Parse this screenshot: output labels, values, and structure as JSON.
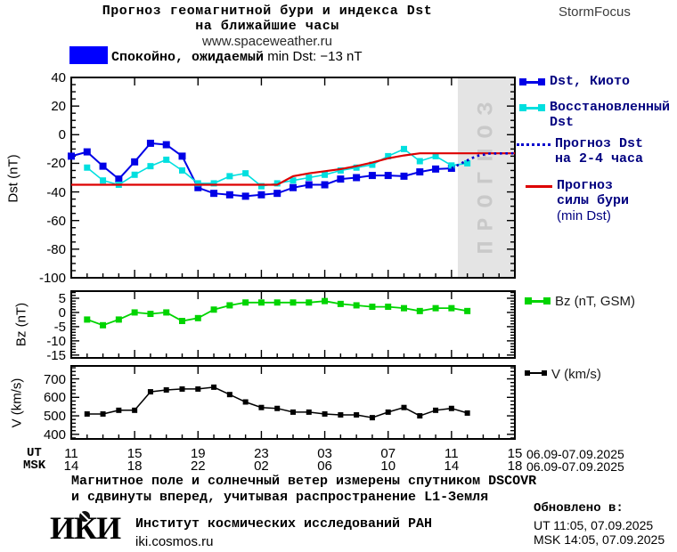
{
  "header": {
    "title_line1": "Прогноз геомагнитной бури и индекса Dst",
    "title_line2": "на ближайшие часы",
    "site": "www.spaceweather.ru",
    "brand": "StormFocus"
  },
  "banner": {
    "label_ru": "Спокойно, ожидаемый",
    "label_latin": "min Dst: −13 nT",
    "color": "#0000ff"
  },
  "legend": {
    "entries": [
      {
        "color": "#0000e6",
        "label_lines": [
          "Dst, Киото"
        ]
      },
      {
        "color": "#00dfdf",
        "label_lines": [
          "Восстановленный",
          "Dst"
        ]
      },
      {
        "color": "#0000cc",
        "label_lines": [
          "Прогноз Dst",
          "на 2-4 часа"
        ]
      },
      {
        "color": "#dd0000",
        "label_lines": [
          "Прогноз",
          "силы бури",
          "(min Dst)"
        ]
      }
    ],
    "bz_label": "Bz (nT, GSM)",
    "bz_color": "#00d400",
    "v_label": "V (km/s)",
    "v_color": "#000000"
  },
  "xaxis": {
    "ut_label": "UT",
    "ut_ticks": [
      "11",
      "15",
      "19",
      "23",
      "03",
      "07",
      "11",
      "15"
    ],
    "ut_date": "06.09-07.09.2025",
    "msk_label": "MSK",
    "msk_ticks": [
      "14",
      "18",
      "22",
      "02",
      "06",
      "10",
      "14",
      "18"
    ],
    "msk_date": "06.09-07.09.2025"
  },
  "footer": {
    "note1": "Магнитное поле и солнечный ветер измерены спутником DSCOVR",
    "note2": "и сдвинуты вперед, учитывая распространение L1-Земля",
    "updated_label": "Обновлено в:",
    "updated_ut": "UT  11:05, 07.09.2025",
    "updated_msk": "MSK 14:05, 07.09.2025",
    "logo": "ИКИ",
    "institute": "Институт космических исследований РАН",
    "institute_site": "iki.cosmos.ru"
  },
  "chart_data": [
    {
      "type": "line",
      "title": "Dst forecast panel",
      "ylabel": "Dst (nT)",
      "ylim": [
        -100,
        40
      ],
      "yticks": [
        40,
        20,
        0,
        -20,
        -40,
        -60,
        -80,
        -100
      ],
      "y_minor_step": 5,
      "x_hours_range": [
        0,
        28
      ],
      "x_start_hour_ut": 11,
      "forecast_region_hours": [
        24.4,
        28
      ],
      "forecast_region_color": "#e4e4e4",
      "watermark": "ПРОГНОЗ",
      "watermark_color": "#c9c9c9",
      "series": [
        {
          "name": "Dst, Киото",
          "color": "#0000e6",
          "marker": "square",
          "marker_size": 8,
          "line_width": 2,
          "x": [
            0,
            1,
            2,
            3,
            4,
            5,
            6,
            7,
            8,
            9,
            10,
            11,
            12,
            13,
            14,
            15,
            16,
            17,
            18,
            19,
            20,
            21,
            22,
            23,
            24
          ],
          "values": [
            -15,
            -12,
            -22,
            -31,
            -19,
            -6,
            -7,
            -15,
            -37,
            -41,
            -42,
            -43,
            -42,
            -41,
            -37,
            -35,
            -35,
            -31,
            -30,
            -28.5,
            -28.5,
            -29,
            -26,
            -24,
            -23.5
          ]
        },
        {
          "name": "Восстановленный Dst",
          "color": "#00dfdf",
          "marker": "square",
          "marker_size": 7,
          "line_width": 1.6,
          "x": [
            1,
            2,
            3,
            4,
            5,
            6,
            7,
            8,
            9,
            10,
            11,
            12,
            13,
            14,
            15,
            16,
            17,
            18,
            19,
            20,
            21,
            22,
            23,
            24,
            25
          ],
          "values": [
            -23,
            -32,
            -35,
            -28,
            -22,
            -17.5,
            -25,
            -34,
            -34,
            -29,
            -27,
            -36,
            -34,
            -32,
            -30,
            -28,
            -25,
            -23,
            -21,
            -15,
            -10,
            -18.5,
            -15,
            -21.5,
            -20
          ]
        },
        {
          "name": "Прогноз силы бури (min Dst)",
          "color": "#dd0000",
          "style": "solid",
          "line_width": 2.2,
          "x": [
            0,
            13,
            14,
            15,
            16,
            17,
            18,
            19,
            20,
            21,
            22,
            28
          ],
          "values": [
            -35,
            -35,
            -29,
            -27,
            -25.5,
            -24,
            -22,
            -19.5,
            -16.5,
            -14.5,
            -13,
            -13
          ]
        },
        {
          "name": "Прогноз Dst на 2-4 часа",
          "color": "#0000cc",
          "style": "dotted",
          "line_width": 2.6,
          "x": [
            24,
            24.8,
            25.6,
            26.4,
            28
          ],
          "values": [
            -23.5,
            -19,
            -14.8,
            -13.2,
            -13
          ]
        }
      ]
    },
    {
      "type": "line",
      "title": "Bz panel",
      "ylabel": "Bz (nT)",
      "ylim": [
        -16,
        7.5
      ],
      "yticks": [
        5,
        0,
        -5,
        -10,
        -15
      ],
      "y_minor_step": 1,
      "x_hours_range": [
        0,
        28
      ],
      "series": [
        {
          "name": "Bz (nT, GSM)",
          "color": "#00d400",
          "marker": "square",
          "marker_size": 7,
          "line_width": 1.8,
          "x": [
            1,
            2,
            3,
            4,
            5,
            6,
            7,
            8,
            9,
            10,
            11,
            12,
            13,
            14,
            15,
            16,
            17,
            18,
            19,
            20,
            21,
            22,
            23,
            24,
            25
          ],
          "values": [
            -2.5,
            -4.5,
            -2.5,
            0,
            -0.5,
            0,
            -3,
            -2,
            1,
            2.5,
            3.5,
            3.5,
            3.5,
            3.5,
            3.5,
            4,
            3,
            2.5,
            2,
            2,
            1.5,
            0.5,
            1.5,
            1.5,
            0.5
          ]
        }
      ]
    },
    {
      "type": "line",
      "title": "Solar wind speed panel",
      "ylabel": "V (km/s)",
      "ylim": [
        375,
        770
      ],
      "yticks": [
        700,
        600,
        500,
        400
      ],
      "y_minor_step": 20,
      "x_hours_range": [
        0,
        28
      ],
      "series": [
        {
          "name": "V (km/s)",
          "color": "#000000",
          "marker": "square",
          "marker_size": 6,
          "line_width": 1.5,
          "x": [
            1,
            2,
            3,
            4,
            5,
            6,
            7,
            8,
            9,
            10,
            11,
            12,
            13,
            14,
            15,
            16,
            17,
            18,
            19,
            20,
            21,
            22,
            23,
            24,
            25
          ],
          "values": [
            510,
            510,
            530,
            530,
            630,
            640,
            645,
            645,
            655,
            615,
            575,
            545,
            540,
            520,
            520,
            510,
            505,
            505,
            490,
            520,
            545,
            500,
            530,
            540,
            515
          ]
        }
      ]
    }
  ]
}
